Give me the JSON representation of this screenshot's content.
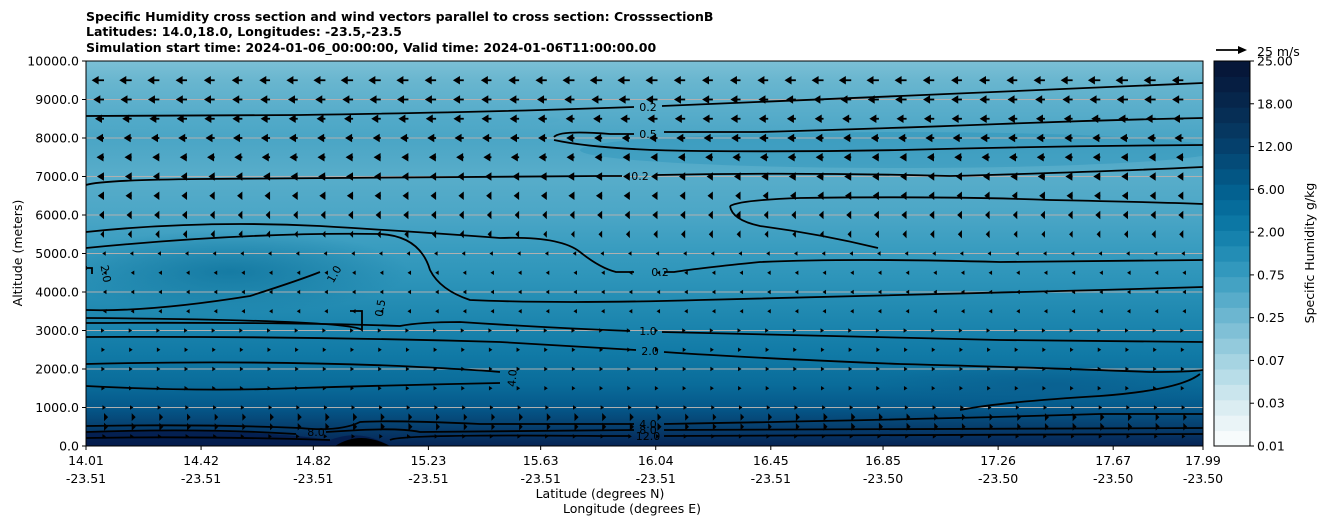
{
  "chart_data": {
    "type": "contour",
    "title_lines": [
      "Specific Humidity cross section and wind vectors parallel to cross section: CrosssectionB",
      "Latitudes: 14.0,18.0, Longitudes: -23.5,-23.5",
      "Simulation start time: 2024-01-06_00:00:00, Valid time: 2024-01-06T11:00:00.00"
    ],
    "ylabel": "Altitude (meters)",
    "xlabel_lat": "Latitude (degrees N)",
    "xlabel_lon": "Longitude (degrees E)",
    "ylim": [
      0,
      10000
    ],
    "yticks": [
      "0.0",
      "1000.0",
      "2000.0",
      "3000.0",
      "4000.0",
      "5000.0",
      "6000.0",
      "7000.0",
      "8000.0",
      "9000.0",
      "10000.0"
    ],
    "xticks_lat": [
      "14.01",
      "14.42",
      "14.82",
      "15.23",
      "15.63",
      "16.04",
      "16.45",
      "16.85",
      "17.26",
      "17.67",
      "17.99"
    ],
    "xticks_lon": [
      "-23.51",
      "-23.51",
      "-23.51",
      "-23.51",
      "-23.51",
      "-23.51",
      "-23.51",
      "-23.50",
      "-23.50",
      "-23.50",
      "-23.50"
    ],
    "grid": "horizontal",
    "colorbar": {
      "label": "Specific Humidity g/kg",
      "levels": [
        0.01,
        0.02,
        0.03,
        0.05,
        0.07,
        0.1,
        0.15,
        0.25,
        0.35,
        0.5,
        0.75,
        1.0,
        1.5,
        2.0,
        3.0,
        4.0,
        6.0,
        8.0,
        10.0,
        12.0,
        14.0,
        16.0,
        18.0,
        20.0,
        22.0,
        25.0
      ],
      "tick_labels": [
        "0.01",
        "0.03",
        "0.07",
        "0.25",
        "0.75",
        "2.00",
        "6.00",
        "12.00",
        "18.00",
        "25.00"
      ],
      "colors": [
        "#f7fbfc",
        "#eaf4f7",
        "#dbedf2",
        "#cae5ed",
        "#b8dde8",
        "#a6d4e2",
        "#93cadc",
        "#80c0d6",
        "#6cb6d0",
        "#58acca",
        "#44a2c3",
        "#3298bd",
        "#238db5",
        "#1682ad",
        "#0c77a4",
        "#066c9b",
        "#036190",
        "#035684",
        "#044b78",
        "#05406c",
        "#063760",
        "#062e55",
        "#06264b",
        "#061e42",
        "#061739"
      ]
    },
    "quiver_key": {
      "label": "25 m/s",
      "speed": 25
    },
    "altitudes_m": [
      250,
      500,
      750,
      1000,
      1500,
      2000,
      2500,
      3000,
      3500,
      4000,
      4500,
      5000,
      5500,
      6000,
      6500,
      7000,
      7500,
      8000,
      8500,
      9000,
      9500
    ],
    "wind_u_ms": [
      2,
      4,
      4,
      2,
      1,
      1,
      1,
      0.5,
      -1,
      -1,
      -1,
      -2,
      -4,
      -5,
      -6,
      -7,
      -8,
      -9,
      -10,
      -11,
      -12
    ],
    "contours": [
      {
        "label": "0.2",
        "alt_m": 9000
      },
      {
        "label": "0.5",
        "alt_m": 8000
      },
      {
        "label": "0.2",
        "alt_m": 7000
      },
      {
        "label": "0.2",
        "alt_m": 4500
      },
      {
        "label": "1.0",
        "alt_m": 4400
      },
      {
        "label": "2.0",
        "alt_m": 4400
      },
      {
        "label": "0.5",
        "alt_m": 3500
      },
      {
        "label": "1.0",
        "alt_m": 3000
      },
      {
        "label": "2.0",
        "alt_m": 2400
      },
      {
        "label": "4.0",
        "alt_m": 1750
      },
      {
        "label": "8.0",
        "alt_m": 350
      },
      {
        "label": "4.0",
        "alt_m": 550
      },
      {
        "label": "8.0",
        "alt_m": 400
      },
      {
        "label": "12.0",
        "alt_m": 250
      }
    ]
  }
}
